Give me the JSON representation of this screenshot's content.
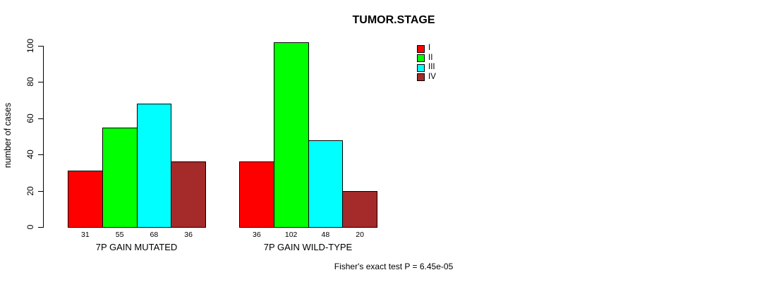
{
  "chart_data": {
    "type": "bar",
    "title": "TUMOR.STAGE",
    "ylabel": "number of cases",
    "xlabel": "",
    "ylim": [
      0,
      100
    ],
    "yticks": [
      0,
      20,
      40,
      60,
      80,
      100
    ],
    "grid": false,
    "categories": [
      "7P GAIN MUTATED",
      "7P GAIN WILD-TYPE"
    ],
    "series": [
      {
        "name": "I",
        "color": "#FF0000",
        "values": [
          31,
          36
        ]
      },
      {
        "name": "II",
        "color": "#00FF00",
        "values": [
          55,
          102
        ]
      },
      {
        "name": "III",
        "color": "#00FFFF",
        "values": [
          68,
          48
        ]
      },
      {
        "name": "IV",
        "color": "#A52A2A",
        "values": [
          36,
          20
        ]
      }
    ],
    "bar_value_labels_shown": true,
    "legend": {
      "position": "top-center",
      "entries": [
        "I",
        "II",
        "III",
        "IV"
      ]
    },
    "footnote": "Fisher's exact test P = 6.45e-05"
  }
}
